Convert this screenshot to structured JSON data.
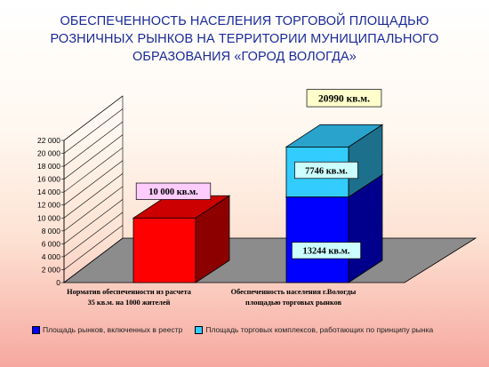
{
  "title_lines": [
    "ОБЕСПЕЧЕННОСТЬ НАСЕЛЕНИЯ ТОРГОВОЙ ПЛОЩАДЬЮ",
    "РОЗНИЧНЫХ РЫНКОВ НА ТЕРРИТОРИИ МУНИЦИПАЛЬНОГО",
    "ОБРАЗОВАНИЯ «ГОРОД ВОЛОГДА»"
  ],
  "chart_data": {
    "type": "bar",
    "stacked": true,
    "three_d": true,
    "categories": [
      [
        "Норматив обеспеченности из расчета",
        "35 кв.м. на 1000 жителей"
      ],
      [
        "Обеспеченность населения г.Вологды",
        "площадью торговых рынков"
      ]
    ],
    "ylim": [
      0,
      22000
    ],
    "yticks": [
      0,
      2000,
      4000,
      6000,
      8000,
      10000,
      12000,
      14000,
      16000,
      18000,
      20000,
      22000
    ],
    "ytick_labels": [
      "0",
      "2 000",
      "4 000",
      "6 000",
      "8 000",
      "10 000",
      "12 000",
      "14 000",
      "16 000",
      "18 000",
      "20 000",
      "22 000"
    ],
    "grid": true,
    "legend_position": "bottom",
    "colors": {
      "norm": "#ff0000",
      "reestr": "#0000ff",
      "complex": "#33ccff",
      "floor": "#8c8c8c",
      "label_pink": "#ffccff",
      "label_cyan": "#ccffff",
      "label_yellow": "#ffffcc"
    },
    "bars": [
      {
        "category_index": 0,
        "segments": [
          {
            "value": 10000,
            "color_key": "norm",
            "label": "10 000 кв.м."
          }
        ]
      },
      {
        "category_index": 1,
        "total_label": "20990 кв.м.",
        "segments": [
          {
            "value": 13244,
            "color_key": "reestr",
            "label": "13244 кв.м."
          },
          {
            "value": 7746,
            "color_key": "complex",
            "label": "7746 кв.м."
          }
        ]
      }
    ],
    "legend": [
      {
        "color_key": "reestr",
        "label": "Площадь рынков, включенных в реестр"
      },
      {
        "color_key": "complex",
        "label": "Площадь торговых комплексов, работающих по принципу рынка"
      }
    ]
  }
}
